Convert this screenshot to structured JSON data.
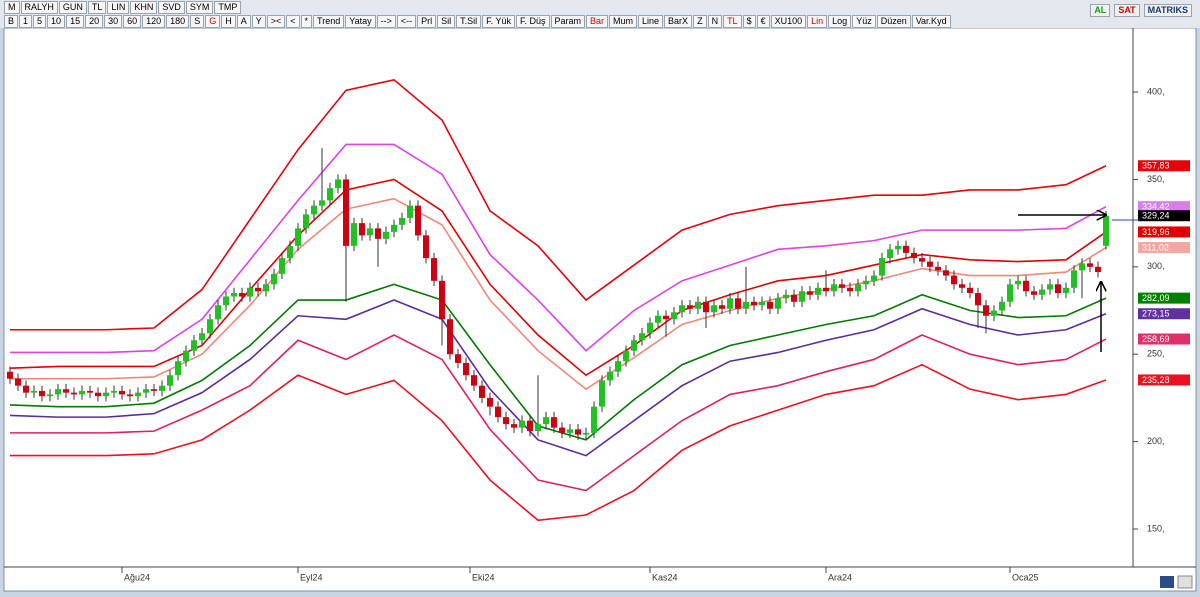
{
  "toolbar": {
    "row1": [
      "M",
      "RALYH",
      "GUN",
      "TL",
      "LIN",
      "KHN",
      "SVD",
      "SYM",
      "TMP"
    ],
    "row2": [
      "B",
      "1",
      "5",
      "10",
      "15",
      "20",
      "30",
      "60",
      "120",
      "180",
      "S",
      {
        "text": "G",
        "color": "#d00000"
      },
      "H",
      "A",
      "Y",
      "><",
      "<",
      "*",
      "Trend",
      "Yatay",
      "-->",
      "<--",
      "Prl",
      "Sil",
      "T.Sil",
      "F. Yük",
      "F. Düş",
      "Param",
      {
        "text": "Bar",
        "color": "#d00000"
      },
      "Mum",
      "Line",
      "BarX",
      "Z",
      "N",
      {
        "text": "TL",
        "color": "#d00000"
      },
      "$",
      "€",
      "XU100",
      {
        "text": "Lin",
        "color": "#d00000"
      },
      "Log",
      "Yüz",
      "Düzen",
      "Var.Kyd"
    ],
    "right": [
      {
        "text": "AL",
        "color": "#10a010"
      },
      {
        "text": "SAT",
        "color": "#d00000"
      },
      {
        "text": "MATRIKS",
        "color": "#1a3a6a"
      }
    ]
  },
  "chart_data": {
    "type": "candlestick",
    "up_color": "#22c022",
    "down_color": "#d00010",
    "xlim": [
      -0.25,
      140.375
    ],
    "ylim": [
      129.4,
      435.5
    ],
    "xticks": [
      {
        "value": 14,
        "label": "Ağu24"
      },
      {
        "value": 36,
        "label": "Eyl24"
      },
      {
        "value": 57.5,
        "label": "Eki24"
      },
      {
        "value": 80,
        "label": "Kas24"
      },
      {
        "value": 102,
        "label": "Ara24"
      },
      {
        "value": 125,
        "label": "Oca25"
      }
    ],
    "yticks": [
      {
        "value": 150,
        "label": "150,"
      },
      {
        "value": 200,
        "label": "200,"
      },
      {
        "value": 250,
        "label": "250,"
      },
      {
        "value": 300,
        "label": "300,"
      },
      {
        "value": 350,
        "label": "350,"
      },
      {
        "value": 400,
        "label": "400,"
      }
    ],
    "open": [
      240,
      236,
      232,
      228,
      229,
      226,
      227,
      230,
      228,
      227,
      229,
      228,
      226,
      228,
      229,
      227,
      226,
      228,
      230,
      229,
      232,
      238,
      246,
      252,
      258,
      262,
      270,
      278,
      283,
      285,
      283,
      288,
      286,
      290,
      296,
      305,
      312,
      322,
      330,
      335,
      338,
      345,
      350,
      312,
      325,
      318,
      322,
      316,
      320,
      324,
      328,
      335,
      318,
      305,
      292,
      270,
      250,
      245,
      238,
      232,
      225,
      220,
      214,
      210,
      208,
      212,
      206,
      210,
      214,
      208,
      205,
      207,
      204,
      205,
      220,
      235,
      240,
      246,
      252,
      258,
      262,
      268,
      272,
      270,
      274,
      278,
      276,
      280,
      274,
      278,
      276,
      282,
      276,
      280,
      278,
      280,
      276,
      282,
      284,
      280,
      286,
      284,
      288,
      286,
      290,
      288,
      286,
      290,
      292,
      295,
      305,
      310,
      312,
      308,
      305,
      303,
      300,
      298,
      295,
      290,
      288,
      285,
      278,
      272,
      275,
      280,
      290,
      292,
      286,
      284,
      287,
      290,
      285,
      288,
      298,
      302,
      300,
      312
    ],
    "high": [
      243,
      239,
      235,
      232,
      232,
      230,
      233,
      233,
      231,
      232,
      232,
      231,
      231,
      232,
      232,
      230,
      231,
      233,
      233,
      235,
      241,
      249,
      255,
      261,
      265,
      273,
      281,
      286,
      288,
      288,
      291,
      291,
      293,
      299,
      308,
      315,
      325,
      333,
      338,
      368,
      348,
      353,
      353,
      328,
      328,
      325,
      325,
      323,
      327,
      331,
      338,
      338,
      321,
      308,
      295,
      273,
      253,
      248,
      241,
      235,
      228,
      223,
      217,
      213,
      215,
      215,
      238,
      217,
      217,
      211,
      210,
      210,
      208,
      223,
      238,
      243,
      249,
      255,
      261,
      265,
      271,
      275,
      275,
      277,
      281,
      281,
      283,
      283,
      281,
      281,
      285,
      285,
      300,
      283,
      283,
      283,
      285,
      287,
      287,
      289,
      289,
      291,
      298,
      293,
      293,
      291,
      293,
      295,
      298,
      308,
      313,
      315,
      315,
      311,
      308,
      306,
      303,
      301,
      298,
      293,
      291,
      288,
      281,
      278,
      283,
      293,
      295,
      295,
      289,
      290,
      293,
      293,
      291,
      301,
      305,
      305,
      303,
      332
    ],
    "low": [
      233,
      229,
      225,
      225,
      223,
      223,
      224,
      225,
      224,
      224,
      225,
      223,
      223,
      225,
      224,
      223,
      223,
      225,
      226,
      226,
      229,
      235,
      243,
      249,
      255,
      259,
      267,
      275,
      280,
      280,
      280,
      283,
      283,
      287,
      293,
      302,
      309,
      319,
      327,
      332,
      335,
      342,
      280,
      309,
      315,
      315,
      300,
      313,
      317,
      321,
      325,
      315,
      302,
      289,
      255,
      247,
      242,
      235,
      229,
      222,
      215,
      211,
      207,
      205,
      205,
      203,
      203,
      207,
      205,
      202,
      202,
      201,
      201,
      202,
      217,
      232,
      237,
      243,
      249,
      255,
      259,
      265,
      260,
      267,
      271,
      273,
      273,
      265,
      271,
      273,
      273,
      273,
      273,
      275,
      275,
      273,
      273,
      279,
      277,
      277,
      281,
      281,
      283,
      283,
      285,
      283,
      283,
      287,
      289,
      292,
      302,
      307,
      305,
      302,
      300,
      297,
      295,
      292,
      287,
      285,
      282,
      265,
      262,
      269,
      272,
      277,
      287,
      283,
      281,
      281,
      284,
      282,
      282,
      285,
      282,
      297,
      294,
      310
    ],
    "close": [
      236,
      232,
      228,
      229,
      226,
      227,
      230,
      228,
      227,
      229,
      228,
      226,
      228,
      229,
      227,
      226,
      228,
      230,
      229,
      232,
      238,
      246,
      252,
      258,
      262,
      270,
      278,
      283,
      285,
      283,
      288,
      286,
      290,
      296,
      305,
      312,
      322,
      330,
      335,
      338,
      345,
      350,
      312,
      325,
      318,
      322,
      316,
      320,
      324,
      328,
      335,
      318,
      305,
      292,
      270,
      250,
      245,
      238,
      232,
      225,
      220,
      214,
      210,
      208,
      212,
      206,
      210,
      214,
      208,
      205,
      207,
      204,
      205,
      220,
      235,
      240,
      246,
      252,
      258,
      262,
      268,
      272,
      270,
      274,
      278,
      276,
      280,
      274,
      278,
      276,
      282,
      276,
      280,
      278,
      280,
      276,
      282,
      284,
      280,
      286,
      284,
      288,
      286,
      290,
      288,
      286,
      290,
      292,
      295,
      305,
      310,
      312,
      308,
      305,
      303,
      300,
      298,
      295,
      290,
      288,
      285,
      278,
      272,
      275,
      280,
      290,
      292,
      286,
      284,
      287,
      290,
      285,
      288,
      298,
      302,
      300,
      297,
      329.24
    ],
    "band_x": [
      0,
      6,
      12,
      18,
      24,
      30,
      36,
      42,
      48,
      54,
      60,
      66,
      72,
      78,
      84,
      90,
      96,
      102,
      108,
      114,
      120,
      126,
      132,
      137
    ],
    "series": [
      {
        "color": "#e8000a",
        "values": [
          264,
          264,
          264,
          265,
          287,
          327,
          367,
          401,
          407,
          384,
          332,
          312,
          281,
          301,
          321,
          330,
          335,
          338,
          341,
          341,
          344,
          344,
          347,
          357.83
        ]
      },
      {
        "color": "#e040e8",
        "values": [
          251,
          251,
          251,
          252,
          270,
          304,
          338,
          370,
          370,
          353,
          307,
          281,
          252,
          275,
          292,
          301,
          310,
          312,
          315,
          321,
          321,
          321,
          322,
          334.42
        ]
      },
      {
        "color": "#e00000",
        "values": [
          242,
          243,
          243,
          243,
          255,
          287,
          318,
          344,
          350,
          332,
          290,
          261,
          238,
          255,
          275,
          284,
          292,
          295,
          301,
          307,
          304,
          303,
          304,
          319.96
        ]
      },
      {
        "color": "#f08878",
        "values": [
          236,
          236,
          236,
          237,
          250,
          278,
          310,
          333,
          339,
          324,
          281,
          252,
          230,
          248,
          267,
          275,
          282,
          287,
          292,
          299,
          295,
          295,
          297,
          311.02
        ]
      },
      {
        "color": "#007a00",
        "values": [
          221,
          220,
          220,
          222,
          235,
          255,
          281,
          281,
          290,
          281,
          244,
          209,
          201,
          224,
          244,
          255,
          261,
          267,
          272,
          284,
          275,
          271,
          272,
          282.09
        ]
      },
      {
        "color": "#5a2aa0",
        "values": [
          215,
          214,
          214,
          216,
          228,
          247,
          272,
          270,
          281,
          270,
          230,
          201,
          192,
          212,
          232,
          246,
          251,
          258,
          264,
          276,
          267,
          261,
          264,
          273.15
        ]
      },
      {
        "color": "#e0205e",
        "values": [
          205,
          205,
          205,
          206,
          218,
          232,
          258,
          247,
          261,
          247,
          207,
          178,
          172,
          192,
          212,
          227,
          232,
          240,
          247,
          261,
          250,
          244,
          247,
          258.69
        ]
      },
      {
        "color": "#ee1020",
        "values": [
          192,
          192,
          192,
          193,
          201,
          218,
          238,
          227,
          235,
          212,
          178,
          155,
          158,
          172,
          195,
          209,
          218,
          227,
          232,
          244,
          230,
          224,
          227,
          235.28
        ]
      }
    ],
    "price_labels": [
      {
        "value": 357.83,
        "label": "357,83",
        "color": "#e8000a"
      },
      {
        "value": 334.42,
        "label": "334,42",
        "color": "#d880e8"
      },
      {
        "value": 329.24,
        "label": "329,24",
        "color": "#000000"
      },
      {
        "value": 319.96,
        "label": "319,96",
        "color": "#e00000"
      },
      {
        "value": 311.02,
        "label": "311,02",
        "color": "#f0a8a0"
      },
      {
        "value": 282.09,
        "label": "282,09",
        "color": "#008000"
      },
      {
        "value": 273.15,
        "label": "273,15",
        "color": "#6030a0"
      },
      {
        "value": 258.69,
        "label": "258,69",
        "color": "#e0306a"
      },
      {
        "value": 235.28,
        "label": "235,28",
        "color": "#ee1020"
      }
    ]
  }
}
